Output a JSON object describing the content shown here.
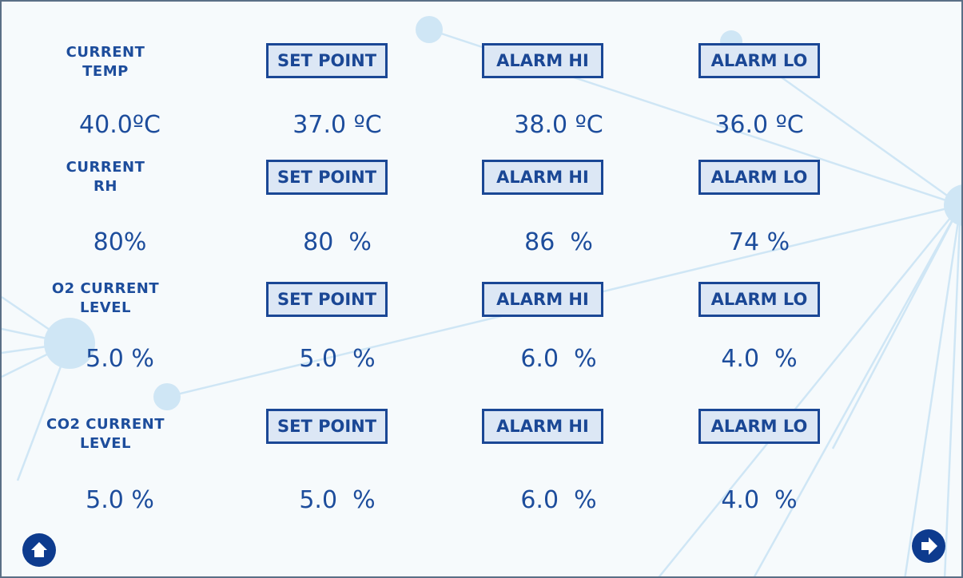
{
  "rows": [
    {
      "label": [
        "CURRENT",
        "TEMP"
      ],
      "buttons": [
        "SET POINT",
        "ALARM HI",
        "ALARM LO"
      ],
      "values": [
        "40.0ºC",
        "37.0 ºC",
        "38.0 ºC",
        "36.0 ºC"
      ]
    },
    {
      "label": [
        "CURRENT",
        "RH"
      ],
      "buttons": [
        "SET POINT",
        "ALARM HI",
        "ALARM LO"
      ],
      "values": [
        "80%",
        "80  %",
        "86  %",
        "74 %"
      ]
    },
    {
      "label": [
        "O2 CURRENT",
        "LEVEL"
      ],
      "buttons": [
        "SET POINT",
        "ALARM HI",
        "ALARM LO"
      ],
      "values": [
        "5.0 %",
        "5.0  %",
        "6.0  %",
        "4.0  %"
      ]
    },
    {
      "label": [
        "CO2 CURRENT",
        "LEVEL"
      ],
      "buttons": [
        "SET POINT",
        "ALARM HI",
        "ALARM LO"
      ],
      "values": [
        "5.0 %",
        "5.0  %",
        "6.0  %",
        "4.0  %"
      ]
    }
  ]
}
